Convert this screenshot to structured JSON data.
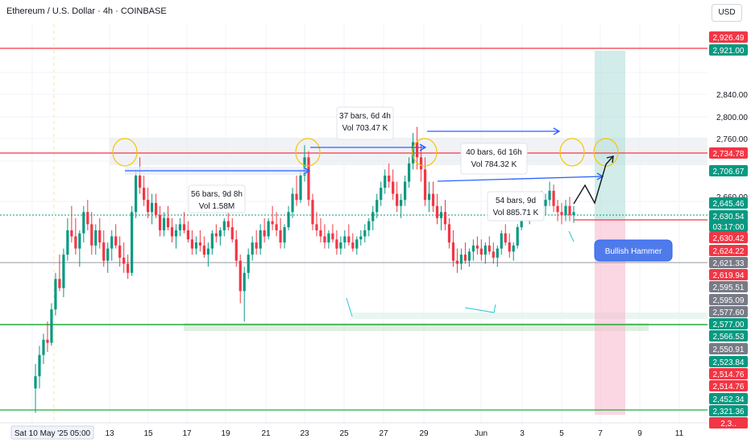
{
  "header": {
    "title": "Ethereum / U.S. Dollar · 4h · COINBASE",
    "currency": "USD"
  },
  "colors": {
    "bull": "#089981",
    "bear": "#f23645",
    "resistance": "#f23645",
    "support": "#22ab3a",
    "annotation_arrow": "#2962ff",
    "target_zone": "#b2dfdb",
    "stop_zone": "#f8bbd0"
  },
  "chart_data": {
    "type": "candlestick",
    "symbol": "ETH/USD",
    "timeframe": "4h",
    "y_ticks": [
      2840,
      2800,
      2760,
      2660
    ],
    "x_ticks": [
      "13",
      "15",
      "17",
      "19",
      "21",
      "23",
      "25",
      "27",
      "29",
      "Jun",
      "3",
      "5",
      "7",
      "9",
      "11"
    ],
    "current_time_label": "Sat 10 May '25 05:00",
    "horizontal_levels": [
      {
        "price": 2921.0,
        "color": "resistance"
      },
      {
        "price": 2734.78,
        "color": "resistance"
      },
      {
        "price": 2630.42,
        "color": "resistance"
      },
      {
        "price": 2577.0,
        "color": "support"
      },
      {
        "price": 2321.36,
        "color": "support"
      },
      {
        "price": 2621.33,
        "color": "gray"
      }
    ],
    "price_tags": [
      {
        "label": "2,926.49",
        "color": "#f23645"
      },
      {
        "label": "2,921.00",
        "color": "#089981"
      },
      {
        "label": "2,734.78",
        "color": "#f23645"
      },
      {
        "label": "2,706.67",
        "color": "#089981"
      },
      {
        "label": "2,645.46",
        "color": "#089981"
      },
      {
        "label": "2,630.54",
        "color": "#089981"
      },
      {
        "label": "03:17:00",
        "color": "#089981"
      },
      {
        "label": "2,630.42",
        "color": "#f23645"
      },
      {
        "label": "2,624.22",
        "color": "#f23645"
      },
      {
        "label": "2,621.33",
        "color": "#787b86"
      },
      {
        "label": "2,619.94",
        "color": "#f23645"
      },
      {
        "label": "2,595.51",
        "color": "#787b86"
      },
      {
        "label": "2,595.09",
        "color": "#787b86"
      },
      {
        "label": "2,577.60",
        "color": "#787b86"
      },
      {
        "label": "2,577.00",
        "color": "#089981"
      },
      {
        "label": "2,566.53",
        "color": "#089981"
      },
      {
        "label": "2,550.91",
        "color": "#787b86"
      },
      {
        "label": "2,523.84",
        "color": "#089981"
      },
      {
        "label": "2,514.76",
        "color": "#f23645"
      },
      {
        "label": "2,514.76",
        "color": "#f23645"
      },
      {
        "label": "2,452.34",
        "color": "#089981"
      },
      {
        "label": "2,321.36",
        "color": "#089981"
      },
      {
        "label": "2,3..",
        "color": "#f23645"
      }
    ],
    "annotations": [
      {
        "line1": "56 bars, 9d 8h",
        "line2": "Vol 1.58M"
      },
      {
        "line1": "37 bars, 6d 4h",
        "line2": "Vol 703.47 K"
      },
      {
        "line1": "40 bars, 6d 16h",
        "line2": "Vol 784.32 K"
      },
      {
        "line1": "54 bars, 9d",
        "line2": "Vol 885.71 K"
      }
    ],
    "callout": "Bullish Hammer",
    "candles": [
      [
        2340,
        2380,
        2300,
        2360
      ],
      [
        2360,
        2410,
        2340,
        2395
      ],
      [
        2395,
        2430,
        2380,
        2420
      ],
      [
        2420,
        2450,
        2400,
        2415
      ],
      [
        2415,
        2480,
        2410,
        2470
      ],
      [
        2470,
        2530,
        2460,
        2520
      ],
      [
        2520,
        2560,
        2500,
        2505
      ],
      [
        2505,
        2570,
        2490,
        2560
      ],
      [
        2560,
        2620,
        2550,
        2600
      ],
      [
        2600,
        2640,
        2580,
        2590
      ],
      [
        2590,
        2620,
        2560,
        2570
      ],
      [
        2570,
        2600,
        2540,
        2595
      ],
      [
        2595,
        2640,
        2580,
        2630
      ],
      [
        2630,
        2650,
        2600,
        2610
      ],
      [
        2610,
        2630,
        2560,
        2575
      ],
      [
        2575,
        2610,
        2560,
        2600
      ],
      [
        2600,
        2620,
        2570,
        2580
      ],
      [
        2580,
        2600,
        2540,
        2550
      ],
      [
        2550,
        2580,
        2530,
        2570
      ],
      [
        2570,
        2600,
        2550,
        2590
      ],
      [
        2590,
        2610,
        2570,
        2575
      ],
      [
        2575,
        2590,
        2540,
        2555
      ],
      [
        2555,
        2580,
        2530,
        2545
      ],
      [
        2545,
        2560,
        2520,
        2530
      ],
      [
        2530,
        2640,
        2525,
        2630
      ],
      [
        2630,
        2700,
        2620,
        2690
      ],
      [
        2690,
        2720,
        2660,
        2670
      ],
      [
        2670,
        2690,
        2640,
        2650
      ],
      [
        2650,
        2670,
        2620,
        2630
      ],
      [
        2630,
        2660,
        2610,
        2645
      ],
      [
        2645,
        2660,
        2620,
        2625
      ],
      [
        2625,
        2640,
        2590,
        2600
      ],
      [
        2600,
        2630,
        2590,
        2620
      ],
      [
        2620,
        2640,
        2600,
        2605
      ],
      [
        2605,
        2620,
        2580,
        2590
      ],
      [
        2590,
        2610,
        2570,
        2600
      ],
      [
        2600,
        2620,
        2590,
        2610
      ],
      [
        2610,
        2630,
        2595,
        2600
      ],
      [
        2600,
        2615,
        2580,
        2585
      ],
      [
        2585,
        2600,
        2560,
        2570
      ],
      [
        2570,
        2590,
        2560,
        2580
      ],
      [
        2580,
        2600,
        2565,
        2575
      ],
      [
        2575,
        2590,
        2555,
        2560
      ],
      [
        2560,
        2580,
        2540,
        2570
      ],
      [
        2570,
        2600,
        2560,
        2595
      ],
      [
        2595,
        2610,
        2580,
        2590
      ],
      [
        2590,
        2605,
        2575,
        2600
      ],
      [
        2600,
        2620,
        2590,
        2615
      ],
      [
        2615,
        2630,
        2600,
        2605
      ],
      [
        2605,
        2620,
        2580,
        2585
      ],
      [
        2585,
        2600,
        2540,
        2550
      ],
      [
        2550,
        2560,
        2480,
        2500
      ],
      [
        2500,
        2540,
        2450,
        2530
      ],
      [
        2530,
        2570,
        2520,
        2560
      ],
      [
        2560,
        2590,
        2550,
        2580
      ],
      [
        2580,
        2600,
        2560,
        2570
      ],
      [
        2570,
        2610,
        2560,
        2600
      ],
      [
        2600,
        2620,
        2580,
        2590
      ],
      [
        2590,
        2620,
        2585,
        2615
      ],
      [
        2615,
        2640,
        2600,
        2610
      ],
      [
        2610,
        2630,
        2590,
        2600
      ],
      [
        2600,
        2620,
        2570,
        2580
      ],
      [
        2580,
        2610,
        2570,
        2605
      ],
      [
        2605,
        2640,
        2600,
        2630
      ],
      [
        2630,
        2670,
        2620,
        2660
      ],
      [
        2660,
        2690,
        2640,
        2650
      ],
      [
        2650,
        2700,
        2645,
        2690
      ],
      [
        2690,
        2740,
        2680,
        2720
      ],
      [
        2720,
        2730,
        2640,
        2650
      ],
      [
        2650,
        2660,
        2600,
        2610
      ],
      [
        2610,
        2630,
        2590,
        2600
      ],
      [
        2600,
        2620,
        2580,
        2590
      ],
      [
        2590,
        2610,
        2570,
        2580
      ],
      [
        2580,
        2600,
        2570,
        2595
      ],
      [
        2595,
        2610,
        2580,
        2585
      ],
      [
        2585,
        2600,
        2560,
        2570
      ],
      [
        2570,
        2590,
        2560,
        2580
      ],
      [
        2580,
        2600,
        2570,
        2590
      ],
      [
        2590,
        2610,
        2575,
        2580
      ],
      [
        2580,
        2595,
        2565,
        2570
      ],
      [
        2570,
        2590,
        2560,
        2585
      ],
      [
        2585,
        2600,
        2575,
        2590
      ],
      [
        2590,
        2610,
        2580,
        2600
      ],
      [
        2600,
        2620,
        2590,
        2615
      ],
      [
        2615,
        2640,
        2600,
        2630
      ],
      [
        2630,
        2660,
        2620,
        2650
      ],
      [
        2650,
        2680,
        2640,
        2670
      ],
      [
        2670,
        2700,
        2660,
        2690
      ],
      [
        2690,
        2710,
        2670,
        2680
      ],
      [
        2680,
        2700,
        2650,
        2660
      ],
      [
        2660,
        2680,
        2630,
        2640
      ],
      [
        2640,
        2660,
        2620,
        2650
      ],
      [
        2650,
        2690,
        2640,
        2680
      ],
      [
        2680,
        2720,
        2670,
        2710
      ],
      [
        2710,
        2760,
        2700,
        2745
      ],
      [
        2745,
        2770,
        2700,
        2720
      ],
      [
        2720,
        2740,
        2680,
        2700
      ],
      [
        2700,
        2720,
        2640,
        2650
      ],
      [
        2650,
        2680,
        2630,
        2660
      ],
      [
        2660,
        2680,
        2630,
        2640
      ],
      [
        2640,
        2660,
        2610,
        2620
      ],
      [
        2620,
        2640,
        2600,
        2630
      ],
      [
        2630,
        2650,
        2600,
        2610
      ],
      [
        2610,
        2620,
        2570,
        2580
      ],
      [
        2580,
        2600,
        2540,
        2550
      ],
      [
        2550,
        2570,
        2530,
        2545
      ],
      [
        2545,
        2570,
        2535,
        2560
      ],
      [
        2560,
        2580,
        2545,
        2550
      ],
      [
        2550,
        2570,
        2540,
        2565
      ],
      [
        2565,
        2585,
        2550,
        2575
      ],
      [
        2575,
        2590,
        2560,
        2570
      ],
      [
        2570,
        2585,
        2550,
        2560
      ],
      [
        2560,
        2580,
        2545,
        2575
      ],
      [
        2575,
        2590,
        2560,
        2565
      ],
      [
        2565,
        2580,
        2545,
        2555
      ],
      [
        2555,
        2575,
        2540,
        2570
      ],
      [
        2570,
        2600,
        2560,
        2595
      ],
      [
        2595,
        2610,
        2575,
        2580
      ],
      [
        2580,
        2595,
        2555,
        2565
      ],
      [
        2565,
        2580,
        2550,
        2575
      ],
      [
        2575,
        2610,
        2570,
        2605
      ],
      [
        2605,
        2650,
        2600,
        2640
      ],
      [
        2640,
        2660,
        2620,
        2630
      ],
      [
        2630,
        2650,
        2610,
        2640
      ],
      [
        2640,
        2660,
        2625,
        2635
      ],
      [
        2635,
        2650,
        2615,
        2645
      ],
      [
        2645,
        2665,
        2630,
        2640
      ],
      [
        2640,
        2660,
        2625,
        2650
      ],
      [
        2650,
        2680,
        2640,
        2665
      ],
      [
        2665,
        2675,
        2630,
        2640
      ],
      [
        2640,
        2650,
        2615,
        2630
      ],
      [
        2630,
        2645,
        2610,
        2625
      ],
      [
        2625,
        2650,
        2615,
        2640
      ],
      [
        2640,
        2655,
        2615,
        2625
      ],
      [
        2625,
        2640,
        2612,
        2630
      ]
    ]
  }
}
